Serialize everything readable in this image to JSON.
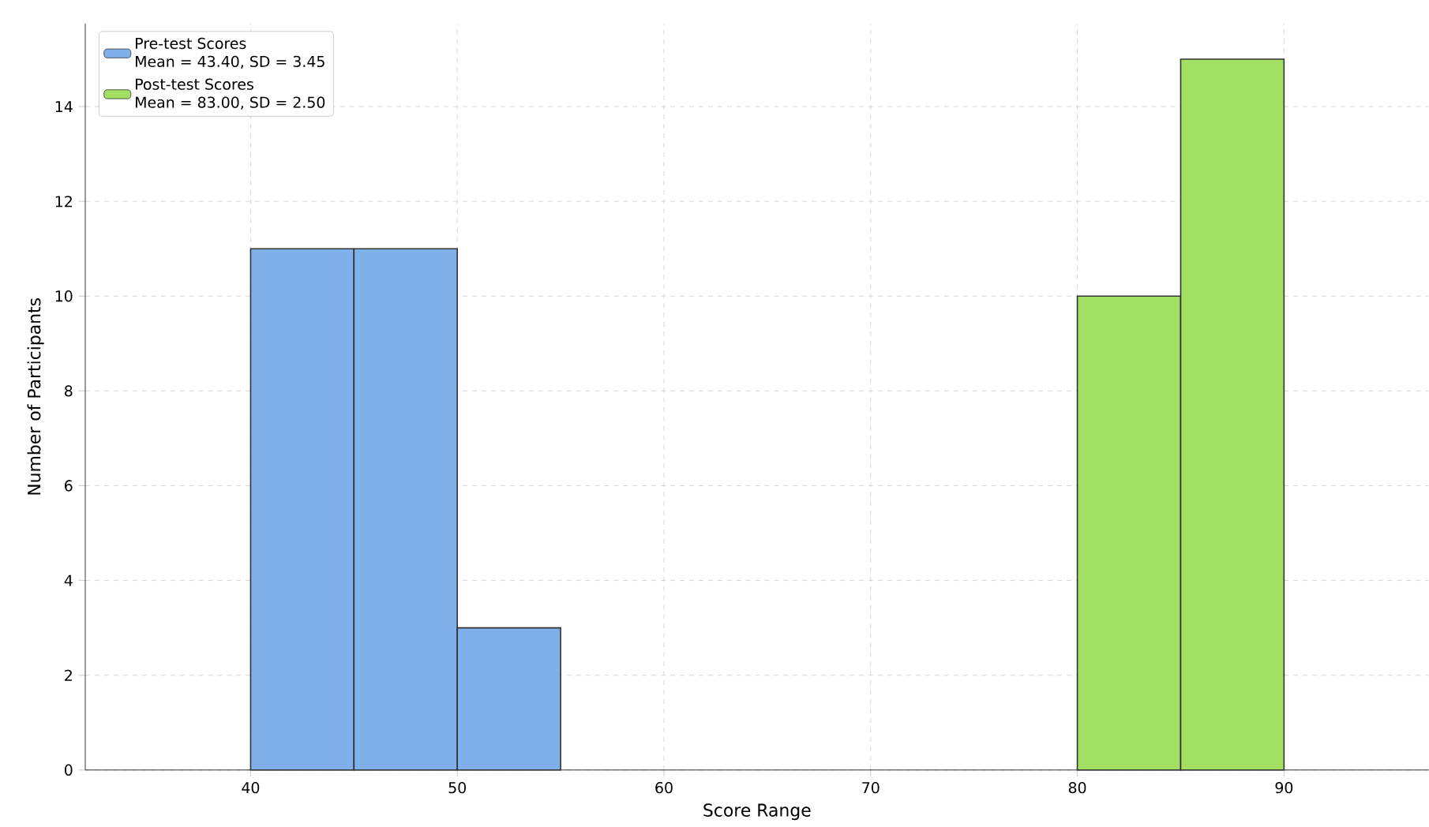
{
  "chart_data": {
    "type": "histogram",
    "xlabel": "Score Range",
    "ylabel": "Number of Participants",
    "bins": [
      40,
      45,
      50,
      55,
      60,
      65,
      70,
      75,
      80,
      85,
      90
    ],
    "series": [
      {
        "name": "Pre-test Scores\nMean = 43.40, SD = 3.45",
        "color": "#7fb0ea",
        "values": [
          11,
          11,
          3,
          null,
          null,
          null,
          null,
          null,
          null,
          null
        ]
      },
      {
        "name": "Post-test Scores\nMean = 83.00, SD = 2.50",
        "color": "#a2df63",
        "values": [
          null,
          null,
          null,
          null,
          null,
          null,
          null,
          null,
          10,
          15
        ]
      }
    ],
    "xlim": [
      32,
      97
    ],
    "ylim": [
      0,
      15.75
    ],
    "xticks": [
      40,
      50,
      60,
      70,
      80,
      90
    ],
    "yticks": [
      0,
      2,
      4,
      6,
      8,
      10,
      12,
      14
    ],
    "grid": true,
    "legend": "top left"
  }
}
